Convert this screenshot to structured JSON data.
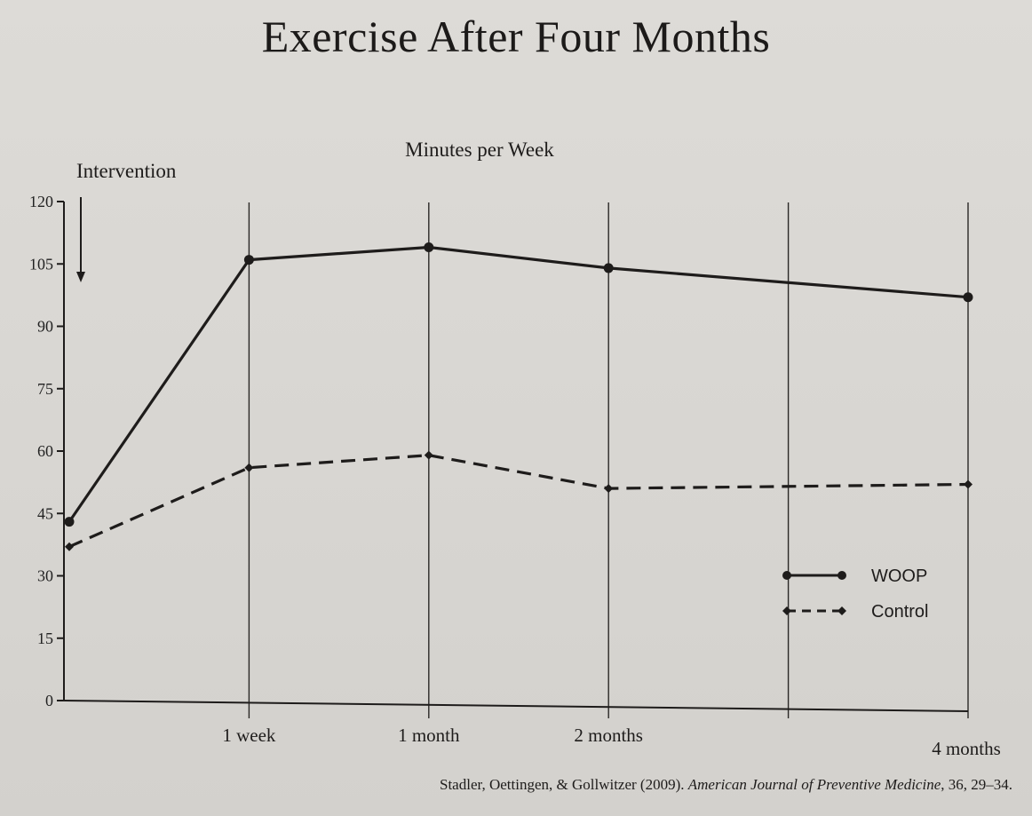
{
  "chart_data": {
    "type": "line",
    "title": "Exercise After Four Months",
    "subtitle": "Minutes per Week",
    "annotation": "Intervention",
    "ylabel": "",
    "xlabel": "",
    "ylim": [
      0,
      120
    ],
    "yticks": [
      0,
      15,
      30,
      45,
      60,
      75,
      90,
      105,
      120
    ],
    "x_ticks": [
      {
        "label": "",
        "x": 0
      },
      {
        "label": "1 week",
        "x": 1
      },
      {
        "label": "1 month",
        "x": 2
      },
      {
        "label": "2 months",
        "x": 3
      },
      {
        "label": "",
        "x": 4
      },
      {
        "label": "4 months",
        "x": 5
      }
    ],
    "xlim": [
      0,
      5
    ],
    "grid": "vertical",
    "legend_position": "bottom-right",
    "series": [
      {
        "name": "WOOP",
        "style": "solid",
        "marker": "circle",
        "x": [
          0,
          1,
          2,
          3,
          5
        ],
        "values": [
          43,
          106,
          109,
          104,
          97
        ]
      },
      {
        "name": "Control",
        "style": "dashed",
        "marker": "diamond",
        "x": [
          0,
          1,
          2,
          3,
          5
        ],
        "values": [
          37,
          56,
          59,
          51,
          52
        ]
      }
    ],
    "citation_text": "Stadler, Oettingen, & Gollwitzer (2009). ",
    "citation_journal": "American Journal of Preventive Medicine",
    "citation_tail": ", 36, 29–34.",
    "colors": {
      "ink": "#1e1c1b",
      "grid": "#2a2826"
    }
  }
}
